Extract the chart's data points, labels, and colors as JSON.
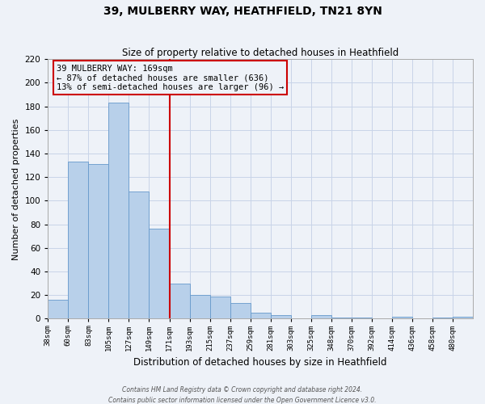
{
  "title": "39, MULBERRY WAY, HEATHFIELD, TN21 8YN",
  "subtitle": "Size of property relative to detached houses in Heathfield",
  "xlabel": "Distribution of detached houses by size in Heathfield",
  "ylabel": "Number of detached properties",
  "bar_labels": [
    "38sqm",
    "60sqm",
    "83sqm",
    "105sqm",
    "127sqm",
    "149sqm",
    "171sqm",
    "193sqm",
    "215sqm",
    "237sqm",
    "259sqm",
    "281sqm",
    "303sqm",
    "325sqm",
    "348sqm",
    "370sqm",
    "392sqm",
    "414sqm",
    "436sqm",
    "458sqm",
    "480sqm"
  ],
  "bar_heights": [
    16,
    133,
    131,
    183,
    108,
    76,
    30,
    20,
    19,
    13,
    5,
    3,
    0,
    3,
    1,
    1,
    0,
    2,
    0,
    1,
    2
  ],
  "bar_color": "#b8d0ea",
  "bar_edge_color": "#6699cc",
  "vline_x": 6,
  "vline_color": "#cc0000",
  "annotation_title": "39 MULBERRY WAY: 169sqm",
  "annotation_line1": "← 87% of detached houses are smaller (636)",
  "annotation_line2": "13% of semi-detached houses are larger (96) →",
  "annotation_box_color": "#cc0000",
  "ylim": [
    0,
    220
  ],
  "yticks": [
    0,
    20,
    40,
    60,
    80,
    100,
    120,
    140,
    160,
    180,
    200,
    220
  ],
  "footer1": "Contains HM Land Registry data © Crown copyright and database right 2024.",
  "footer2": "Contains public sector information licensed under the Open Government Licence v3.0.",
  "bg_color": "#eef2f8",
  "grid_color": "#c8d4e8"
}
